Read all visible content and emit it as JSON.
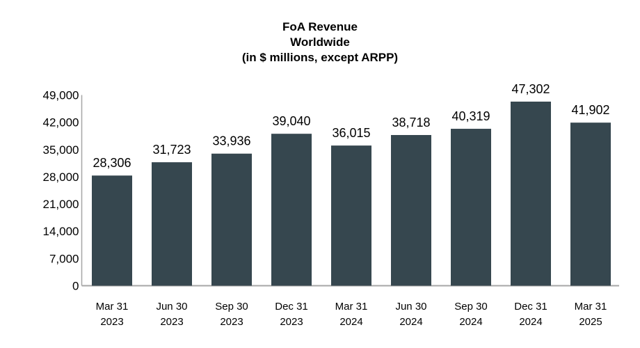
{
  "chart_data": {
    "type": "bar",
    "title": [
      "FoA Revenue",
      "Worldwide",
      "(in $ millions, except ARPP)"
    ],
    "categories": [
      [
        "Mar 31",
        "2023"
      ],
      [
        "Jun 30",
        "2023"
      ],
      [
        "Sep 30",
        "2023"
      ],
      [
        "Dec 31",
        "2023"
      ],
      [
        "Mar 31",
        "2024"
      ],
      [
        "Jun 30",
        "2024"
      ],
      [
        "Sep 30",
        "2024"
      ],
      [
        "Dec 31",
        "2024"
      ],
      [
        "Mar 31",
        "2025"
      ]
    ],
    "values": [
      28306,
      31723,
      33936,
      39040,
      36015,
      38718,
      40319,
      47302,
      41902
    ],
    "data_labels": [
      "28,306",
      "31,723",
      "33,936",
      "39,040",
      "36,015",
      "38,718",
      "40,319",
      "47,302",
      "41,902"
    ],
    "ylim": [
      0,
      49000
    ],
    "yticks": [
      0,
      7000,
      14000,
      21000,
      28000,
      35000,
      42000,
      49000
    ],
    "ytick_labels": [
      "0",
      "7,000",
      "14,000",
      "21,000",
      "28,000",
      "35,000",
      "42,000",
      "49,000"
    ],
    "xlabel": "",
    "ylabel": "",
    "grid": false,
    "bar_color": "#36474f",
    "axis_color": "#a6a6a6"
  }
}
